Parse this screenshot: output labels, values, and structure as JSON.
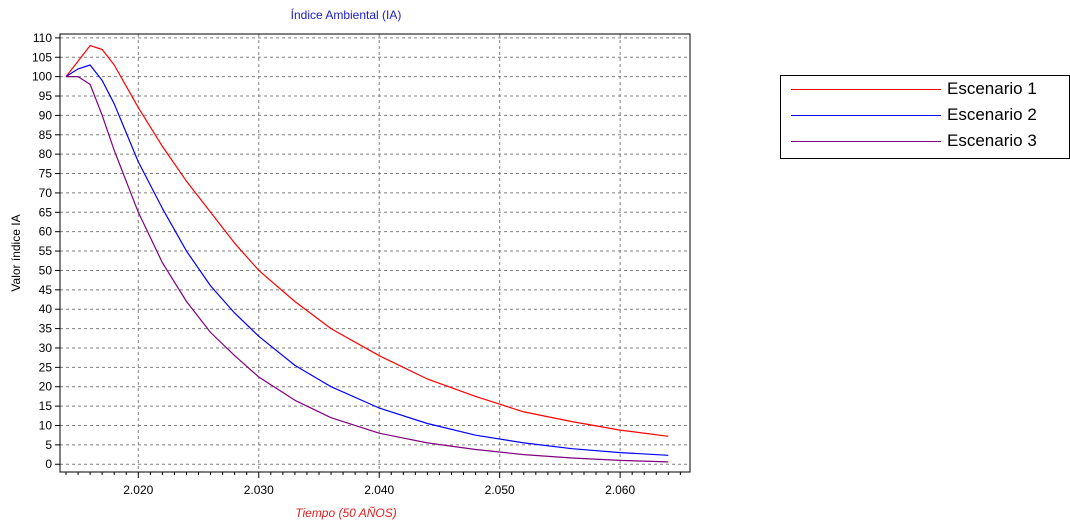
{
  "chart_data": {
    "type": "line",
    "title": "Índice Ambiental (IA)",
    "xlabel": "Tiempo (50 AÑOS)",
    "ylabel": "Valor índice IA",
    "xlim": [
      2013.5,
      2065.8
    ],
    "ylim": [
      -2,
      111
    ],
    "x_ticks": [
      2020,
      2030,
      2040,
      2050,
      2060
    ],
    "x_tick_labels": [
      "2.020",
      "2.030",
      "2.040",
      "2.050",
      "2.060"
    ],
    "y_ticks": [
      0,
      5,
      10,
      15,
      20,
      25,
      30,
      35,
      40,
      45,
      50,
      55,
      60,
      65,
      70,
      75,
      80,
      85,
      90,
      95,
      100,
      105,
      110
    ],
    "y_tick_labels": [
      "0",
      "5",
      "10",
      "15",
      "20",
      "25",
      "30",
      "35",
      "40",
      "45",
      "50",
      "55",
      "60",
      "65",
      "70",
      "75",
      "80",
      "85",
      "90",
      "95",
      "100",
      "105",
      "110"
    ],
    "grid": true,
    "legend_position": "right",
    "colors": {
      "title": "#1a1ad0",
      "xlabel": "#e02020",
      "axis": "#000000",
      "grid": "#808080"
    },
    "series": [
      {
        "name": "Escenario 1",
        "color": "#ff0000",
        "x": [
          2014,
          2015,
          2016,
          2017,
          2018,
          2020,
          2022,
          2024,
          2026,
          2028,
          2030,
          2033,
          2036,
          2040,
          2044,
          2048,
          2052,
          2056,
          2060,
          2064
        ],
        "values": [
          100,
          104,
          108,
          107,
          103,
          92,
          82,
          73,
          65,
          57,
          50,
          42,
          35,
          28,
          22,
          17.5,
          13.5,
          11,
          8.8,
          7.2
        ]
      },
      {
        "name": "Escenario 2",
        "color": "#0000ff",
        "x": [
          2014,
          2015,
          2016,
          2017,
          2018,
          2020,
          2022,
          2024,
          2026,
          2028,
          2030,
          2033,
          2036,
          2040,
          2044,
          2048,
          2052,
          2056,
          2060,
          2064
        ],
        "values": [
          100,
          102,
          103,
          99,
          93,
          78,
          66,
          55,
          46,
          39,
          33,
          25.5,
          20,
          14.5,
          10.5,
          7.5,
          5.5,
          4,
          3,
          2.3
        ]
      },
      {
        "name": "Escenario 3",
        "color": "#800080",
        "x": [
          2014,
          2015,
          2016,
          2017,
          2018,
          2020,
          2022,
          2024,
          2026,
          2028,
          2030,
          2033,
          2036,
          2040,
          2044,
          2048,
          2052,
          2056,
          2060,
          2064
        ],
        "values": [
          100,
          100,
          98,
          90,
          81,
          65,
          52,
          42,
          34,
          28,
          22.5,
          16.5,
          12,
          8,
          5.5,
          3.8,
          2.5,
          1.6,
          1,
          0.6
        ]
      }
    ]
  }
}
